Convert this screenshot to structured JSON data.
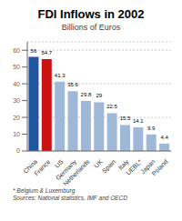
{
  "chart_data": {
    "type": "bar",
    "title": "FDI Inflows in 2002",
    "subtitle": "Billions of Euros",
    "categories": [
      "China",
      "France",
      "US",
      "Germany",
      "Netherlands",
      "UK",
      "Spain",
      "Italy",
      "UEBL*",
      "Japan",
      "Poland"
    ],
    "values": [
      56,
      54.7,
      41.3,
      35.6,
      29.8,
      29,
      22.5,
      15.5,
      14.1,
      9.9,
      4.4
    ],
    "colors": [
      "#2255a0",
      "#cc1111",
      "#a0b8d8",
      "#a0b8d8",
      "#a0b8d8",
      "#a0b8d8",
      "#a0b8d8",
      "#a0b8d8",
      "#a0b8d8",
      "#a0b8d8",
      "#a0b8d8"
    ],
    "ylim": [
      0,
      65
    ],
    "yticks": [
      0,
      10,
      20,
      30,
      40,
      50,
      60
    ],
    "grid": true,
    "data_labels": true,
    "annotations": [
      "* Belgium & Luxemburg",
      "Sources: National statistics, IMF and OECD"
    ]
  }
}
